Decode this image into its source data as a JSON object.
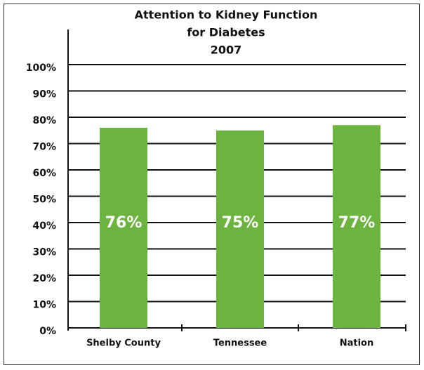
{
  "chart_data": {
    "type": "bar",
    "title": [
      "Attention to Kidney Function",
      "for Diabetes",
      "2007"
    ],
    "categories": [
      "Shelby County",
      "Tennessee",
      "Nation"
    ],
    "values": [
      76,
      75,
      77
    ],
    "value_labels": [
      "76%",
      "75%",
      "77%"
    ],
    "color": "#6db33f",
    "ylim": [
      0,
      100
    ],
    "yticks": [
      {
        "value": 0,
        "label": "0%"
      },
      {
        "value": 10,
        "label": "10%"
      },
      {
        "value": 20,
        "label": "20%"
      },
      {
        "value": 30,
        "label": "30%"
      },
      {
        "value": 40,
        "label": "40%"
      },
      {
        "value": 50,
        "label": "50%"
      },
      {
        "value": 60,
        "label": "60%"
      },
      {
        "value": 70,
        "label": "70%"
      },
      {
        "value": 80,
        "label": "80%"
      },
      {
        "value": 90,
        "label": "90%"
      },
      {
        "value": 100,
        "label": "100%"
      }
    ],
    "grid": true
  }
}
